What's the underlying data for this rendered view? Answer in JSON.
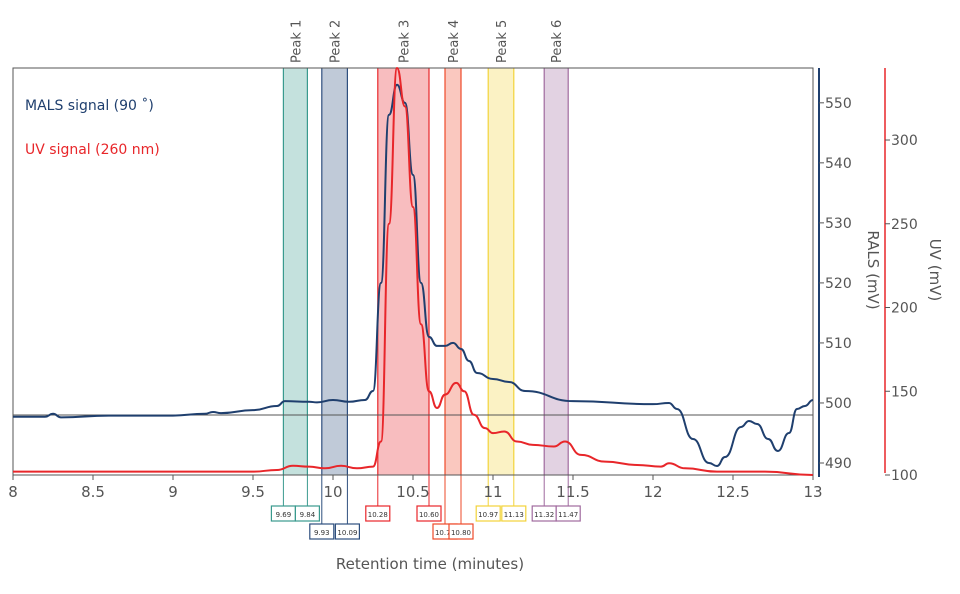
{
  "chart_data": {
    "type": "line",
    "xlabel": "Retention time (minutes)",
    "xlim": [
      8,
      13
    ],
    "xticks": [
      "8",
      "8.5",
      "9",
      "9.5",
      "10",
      "10.5",
      "11",
      "11.5",
      "12",
      "12.5",
      "13"
    ],
    "axes": {
      "rals": {
        "label": "RALS (mV)",
        "ylim": [
          488,
          555.8
        ],
        "ticks": [
          490,
          500,
          510,
          520,
          530,
          540,
          550
        ],
        "color": "#1f3f6e"
      },
      "uv": {
        "label": "UV (mV)",
        "ylim": [
          100,
          343
        ],
        "ticks": [
          100,
          150,
          200,
          250,
          300
        ],
        "color": "#e8262a"
      }
    },
    "legend_placement": "top-left",
    "grid": false,
    "reference_line_rals": 498,
    "series": [
      {
        "name": "MALS signal (90 ˚)",
        "axis": "rals",
        "color": "#1f3f6e",
        "x": [
          8,
          8.2,
          8.25,
          8.3,
          8.6,
          9,
          9.2,
          9.25,
          9.3,
          9.5,
          9.65,
          9.7,
          9.85,
          9.9,
          10,
          10.1,
          10.2,
          10.25,
          10.3,
          10.35,
          10.4,
          10.45,
          10.5,
          10.55,
          10.6,
          10.65,
          10.7,
          10.75,
          10.8,
          10.85,
          10.9,
          11,
          11.1,
          11.2,
          11.5,
          12,
          12.1,
          12.15,
          12.25,
          12.35,
          12.4,
          12.45,
          12.55,
          12.6,
          12.65,
          12.72,
          12.78,
          12.85,
          12.9,
          12.95,
          13
        ],
        "y": [
          497.7,
          497.7,
          498.2,
          497.6,
          497.9,
          497.9,
          498.2,
          498.5,
          498.3,
          498.8,
          499.5,
          500.3,
          500.2,
          500.1,
          500.5,
          500.2,
          500.5,
          502,
          520,
          548,
          553,
          550,
          538,
          520,
          511,
          509.5,
          509.5,
          510,
          509,
          507,
          505,
          504,
          503.5,
          502,
          500.3,
          499.8,
          500,
          499,
          494,
          490,
          489.5,
          491,
          496,
          497,
          496.5,
          494,
          492,
          495,
          499,
          499.5,
          500.5
        ]
      },
      {
        "name": "UV signal (260 nm)",
        "axis": "uv",
        "color": "#e8262a",
        "x": [
          8,
          8.5,
          9,
          9.5,
          9.65,
          9.75,
          9.85,
          9.95,
          10.05,
          10.15,
          10.25,
          10.3,
          10.35,
          10.4,
          10.45,
          10.5,
          10.55,
          10.6,
          10.65,
          10.7,
          10.77,
          10.82,
          10.88,
          10.95,
          11,
          11.07,
          11.15,
          11.25,
          11.38,
          11.45,
          11.55,
          11.7,
          11.9,
          12.05,
          12.1,
          12.2,
          12.4,
          12.7,
          13
        ],
        "y": [
          102,
          102,
          102,
          102,
          103,
          105.5,
          105,
          104,
          105.5,
          104,
          105,
          120,
          250,
          343,
          320,
          260,
          190,
          150,
          140,
          148,
          155,
          150,
          136,
          128,
          125,
          126,
          120,
          118,
          117,
          120,
          112,
          108,
          106,
          105,
          107,
          104,
          102,
          102,
          100
        ]
      }
    ],
    "peaks": [
      {
        "label": "Peak 1",
        "start": "9.69",
        "end": "9.84",
        "color": "#3a9a8e"
      },
      {
        "label": "Peak 2",
        "start": "9.93",
        "end": "10.09",
        "color": "#2e4f7e"
      },
      {
        "label": "Peak 3",
        "start": "10.28",
        "end": "10.60",
        "color": "#e8262a"
      },
      {
        "label": "Peak 4",
        "start": "10.70",
        "end": "10.80",
        "color": "#ee4a2a"
      },
      {
        "label": "Peak 5",
        "start": "10.97",
        "end": "11.13",
        "color": "#f2d33a"
      },
      {
        "label": "Peak 6",
        "start": "11.32",
        "end": "11.47",
        "color": "#a06a9e"
      }
    ]
  }
}
